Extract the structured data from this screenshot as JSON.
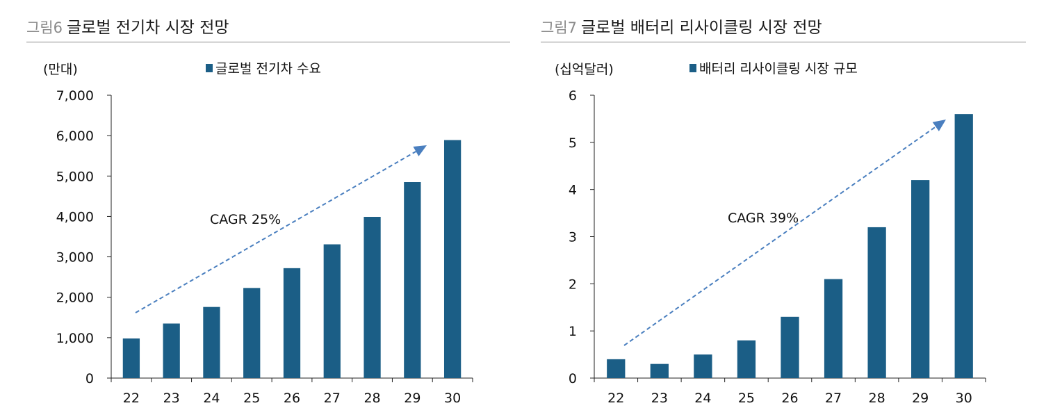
{
  "figures": [
    {
      "prefix": "그림6",
      "title": "글로벌 전기차 시장 전망",
      "unit": "(만대)",
      "annotation": "CAGR 25%"
    },
    {
      "prefix": "그림7",
      "title": "글로벌 배터리 리사이클링 시장 전망",
      "unit": "(십억달러)",
      "annotation": "CAGR 39%"
    }
  ],
  "chart_data": [
    {
      "type": "bar",
      "title": "글로벌 전기차 시장 전망",
      "ylabel": "(만대)",
      "categories": [
        "22",
        "23",
        "24",
        "25",
        "26",
        "27",
        "28",
        "29",
        "30"
      ],
      "series": [
        {
          "name": "글로벌 전기차 수요",
          "values": [
            980,
            1350,
            1760,
            2230,
            2720,
            3310,
            3990,
            4850,
            5890
          ]
        }
      ],
      "ylim": [
        0,
        7000
      ],
      "yticks": [
        0,
        1000,
        2000,
        3000,
        4000,
        5000,
        6000,
        7000
      ],
      "ytick_labels": [
        "0",
        "1,000",
        "2,000",
        "3,000",
        "4,000",
        "5,000",
        "6,000",
        "7,000"
      ],
      "legend_position": "top-center",
      "grid": false,
      "bar_color": "#1b5e86",
      "annotation": {
        "text": "CAGR 25%",
        "arrow_color": "#4a7fbf",
        "arrow_style": "dashed"
      }
    },
    {
      "type": "bar",
      "title": "글로벌 배터리 리사이클링 시장 전망",
      "ylabel": "(십억달러)",
      "categories": [
        "22",
        "23",
        "24",
        "25",
        "26",
        "27",
        "28",
        "29",
        "30"
      ],
      "series": [
        {
          "name": "배터리 리사이클링 시장 규모",
          "values": [
            0.4,
            0.3,
            0.5,
            0.8,
            1.3,
            2.1,
            3.2,
            4.2,
            5.6
          ]
        }
      ],
      "ylim": [
        0,
        6
      ],
      "yticks": [
        0,
        1,
        2,
        3,
        4,
        5,
        6
      ],
      "ytick_labels": [
        "0",
        "1",
        "2",
        "3",
        "4",
        "5",
        "6"
      ],
      "legend_position": "top-center",
      "grid": false,
      "bar_color": "#1b5e86",
      "annotation": {
        "text": "CAGR 39%",
        "arrow_color": "#4a7fbf",
        "arrow_style": "dashed"
      }
    }
  ]
}
